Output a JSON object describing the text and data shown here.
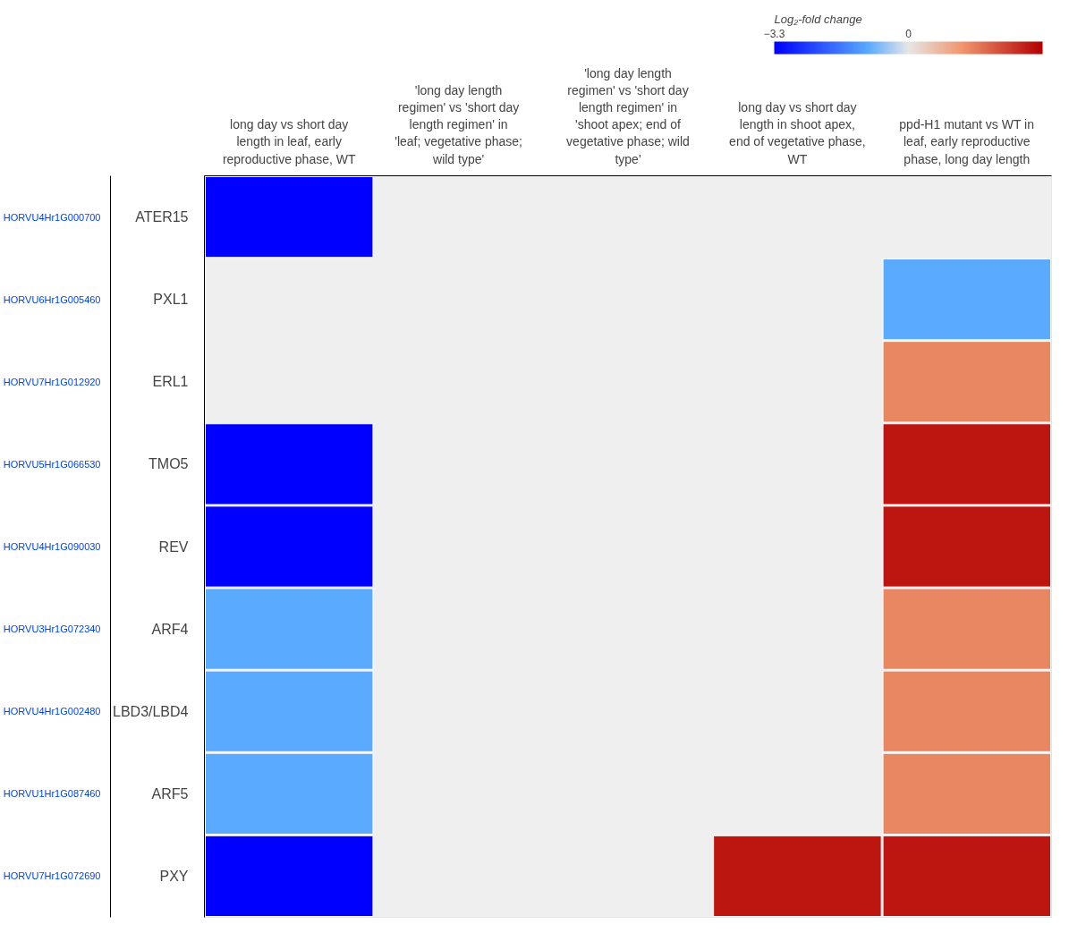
{
  "chart_data": {
    "type": "heatmap",
    "clabel": "Log₂-fold change",
    "categories": [
      "long day vs short day length in leaf, early reproductive phase, WT",
      "'long day length regimen' vs 'short day length regimen' in 'leaf; vegetative phase; wild type'",
      "'long day length regimen' vs 'short day length regimen' in 'shoot apex; end of vegetative phase; wild type'",
      "long day vs short day length in shoot apex, end of vegetative phase, WT",
      "ppd-H1 mutant vs WT in leaf, early reproductive phase, long day length"
    ],
    "y_categories": [
      "ATER15",
      "PXL1",
      "ERL1",
      "TMO5",
      "REV",
      "ARF4",
      "LBD3/LBD4",
      "ARF5",
      "PXY"
    ],
    "y2_categories": [
      "HORVU4Hr1G000700",
      "HORVU6Hr1G005460",
      "HORVU7Hr1G012920",
      "HORVU5Hr1G066530",
      "HORVU4Hr1G090030",
      "HORVU3Hr1G072340",
      "HORVU4Hr1G002480",
      "HORVU1Hr1G087460",
      "HORVU7Hr1G072690"
    ],
    "cells": [
      [
        -3.3,
        null,
        null,
        null,
        null
      ],
      [
        null,
        null,
        null,
        null,
        -1
      ],
      [
        null,
        null,
        null,
        null,
        1.5
      ],
      [
        -3.3,
        null,
        null,
        null,
        3
      ],
      [
        -3.3,
        null,
        null,
        null,
        3
      ],
      [
        -1,
        null,
        null,
        null,
        1.5
      ],
      [
        -1,
        null,
        null,
        null,
        1.5
      ],
      [
        -1,
        null,
        null,
        null,
        1.5
      ],
      [
        -3.3,
        null,
        null,
        3,
        3
      ]
    ],
    "clim": [
      -3.3,
      3.3
    ],
    "cticks": [
      -3.3,
      0
    ]
  }
}
